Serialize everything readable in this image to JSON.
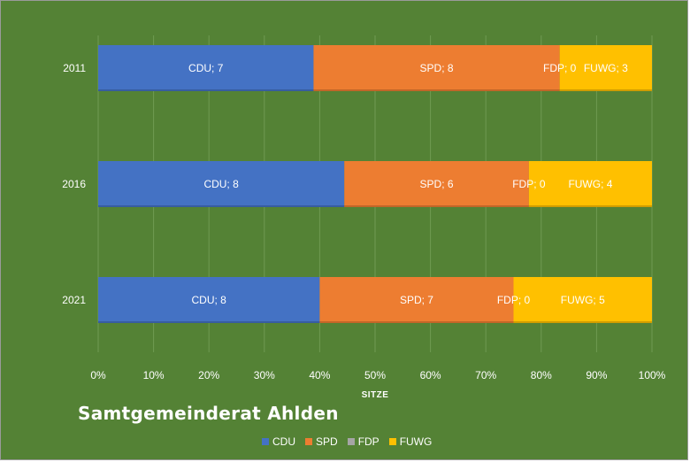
{
  "chart_data": {
    "type": "bar",
    "orientation": "horizontal",
    "stacking": "percent",
    "title": "Samtgemeinderat Ahlden",
    "xlabel": "SITZE",
    "ylabel": "",
    "categories": [
      "2021",
      "2016",
      "2011"
    ],
    "x_ticks": [
      "0%",
      "10%",
      "20%",
      "30%",
      "40%",
      "50%",
      "60%",
      "70%",
      "80%",
      "90%",
      "100%"
    ],
    "xlim": [
      0,
      100
    ],
    "grid": "vertical",
    "legend_position": "bottom",
    "series": [
      {
        "name": "CDU",
        "color": "#4472C4",
        "values": [
          8,
          8,
          7
        ],
        "labels": [
          "CDU; 8",
          "CDU; 8",
          "CDU; 7"
        ]
      },
      {
        "name": "SPD",
        "color": "#ED7D31",
        "values": [
          7,
          6,
          8
        ],
        "labels": [
          "SPD; 7",
          "SPD; 6",
          "SPD; 8"
        ]
      },
      {
        "name": "FDP",
        "color": "#A5A5A5",
        "values": [
          0,
          0,
          0
        ],
        "labels": [
          "FDP; 0",
          "FDP; 0",
          "FDP; 0"
        ]
      },
      {
        "name": "FUWG",
        "color": "#FFC000",
        "values": [
          5,
          4,
          3
        ],
        "labels": [
          "FUWG; 5",
          "FUWG; 4",
          "FUWG; 3"
        ]
      }
    ]
  }
}
